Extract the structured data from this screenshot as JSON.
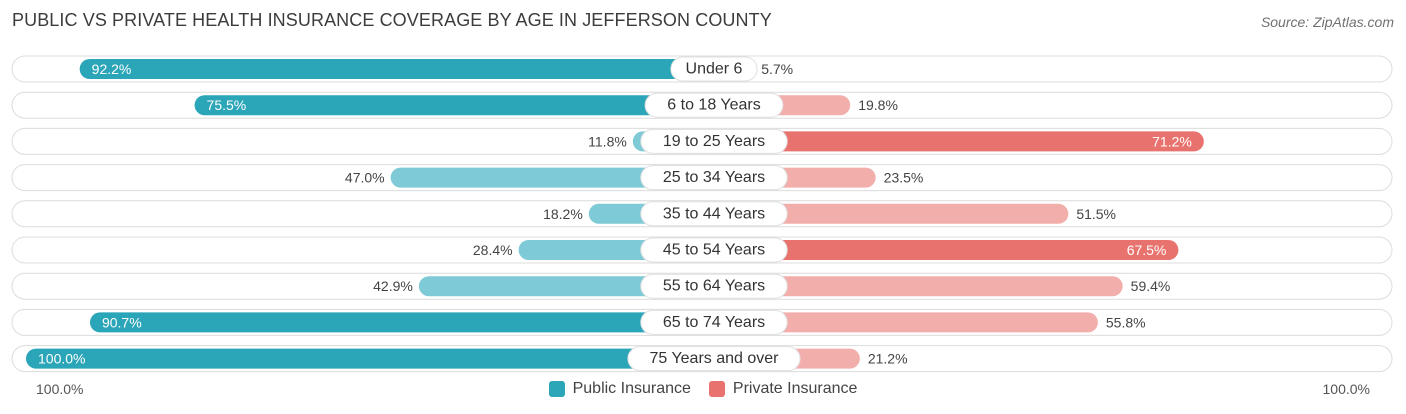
{
  "title": "PUBLIC VS PRIVATE HEALTH INSURANCE COVERAGE BY AGE IN JEFFERSON COUNTY",
  "source": "Source: ZipAtlas.com",
  "colors": {
    "public": "#2ba5b8",
    "public_light": "#7ecad6",
    "private": "#e8736e",
    "private_light": "#f2aeab",
    "track": "#f2f2f2"
  },
  "chart_data": {
    "type": "bar",
    "orientation": "horizontal-diverging",
    "categories": [
      "Under 6",
      "6 to 18 Years",
      "19 to 25 Years",
      "25 to 34 Years",
      "35 to 44 Years",
      "45 to 54 Years",
      "55 to 64 Years",
      "65 to 74 Years",
      "75 Years and over"
    ],
    "series": [
      {
        "name": "Public Insurance",
        "values": [
          92.2,
          75.5,
          11.8,
          47.0,
          18.2,
          28.4,
          42.9,
          90.7,
          100.0
        ]
      },
      {
        "name": "Private Insurance",
        "values": [
          5.7,
          19.8,
          71.2,
          23.5,
          51.5,
          67.5,
          59.4,
          55.8,
          21.2
        ]
      }
    ],
    "value_labels": {
      "public": [
        "92.2%",
        "75.5%",
        "11.8%",
        "47.0%",
        "18.2%",
        "28.4%",
        "42.9%",
        "90.7%",
        "100.0%"
      ],
      "private": [
        "5.7%",
        "19.8%",
        "71.2%",
        "23.5%",
        "51.5%",
        "67.5%",
        "59.4%",
        "55.8%",
        "21.2%"
      ]
    },
    "xlim": [
      0,
      100
    ],
    "axis_left_label": "100.0%",
    "axis_right_label": "100.0%",
    "legend": [
      "Public Insurance",
      "Private Insurance"
    ],
    "legend_position": "bottom-center"
  }
}
